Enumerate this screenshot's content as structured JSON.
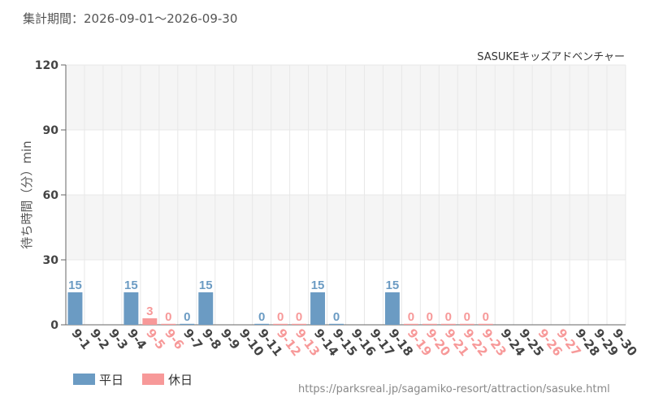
{
  "header": {
    "period_label": "集計期間：",
    "period_start": "2026-09-01",
    "period_sep": "〜",
    "period_end": "2026-09-30"
  },
  "footer": {
    "credit": "https://parksreal.jp/sagamiko-resort/attraction/sasuke.html"
  },
  "colors": {
    "weekday": "#6b9bc3",
    "holiday": "#f79999",
    "grid": "#e8e8e8",
    "band": "#f5f5f5"
  },
  "chart_data": {
    "type": "bar",
    "title": "SASUKEキッズアドベンチャー",
    "ylabel": "待ち時間（分）min",
    "ylim": [
      0,
      120
    ],
    "yticks": [
      0,
      30,
      60,
      90,
      120
    ],
    "categories": [
      "9-1",
      "9-2",
      "9-3",
      "9-4",
      "9-5",
      "9-6",
      "9-7",
      "9-8",
      "9-9",
      "9-10",
      "9-11",
      "9-12",
      "9-13",
      "9-14",
      "9-15",
      "9-16",
      "9-17",
      "9-18",
      "9-19",
      "9-20",
      "9-21",
      "9-22",
      "9-23",
      "9-24",
      "9-25",
      "9-26",
      "9-27",
      "9-28",
      "9-29",
      "9-30"
    ],
    "day_type": [
      "平日",
      "平日",
      "平日",
      "平日",
      "休日",
      "休日",
      "平日",
      "平日",
      "平日",
      "平日",
      "平日",
      "休日",
      "休日",
      "平日",
      "平日",
      "平日",
      "平日",
      "平日",
      "休日",
      "休日",
      "休日",
      "休日",
      "休日",
      "平日",
      "平日",
      "休日",
      "休日",
      "平日",
      "平日",
      "平日"
    ],
    "values": [
      15,
      null,
      null,
      15,
      3,
      0,
      0,
      15,
      null,
      null,
      0,
      0,
      0,
      15,
      0,
      null,
      null,
      15,
      0,
      0,
      0,
      0,
      0,
      null,
      null,
      null,
      null,
      null,
      null,
      null
    ],
    "legend": [
      {
        "name": "平日",
        "color": "#6b9bc3"
      },
      {
        "name": "休日",
        "color": "#f79999"
      }
    ],
    "legend_position": "bottom-left"
  }
}
